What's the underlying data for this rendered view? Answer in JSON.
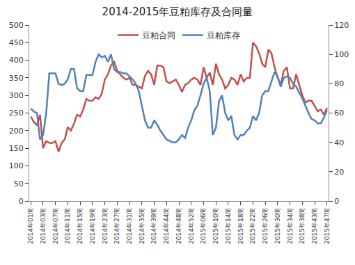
{
  "chart_data": {
    "type": "line",
    "title": "2014-2015年豆粕库存及合同量",
    "categories": [
      "2014年01周",
      null,
      null,
      null,
      "2014年03周",
      null,
      null,
      null,
      "2014年07周",
      null,
      null,
      null,
      "2014年11周",
      null,
      null,
      null,
      "2014年15周",
      null,
      null,
      null,
      "2014年19周",
      null,
      null,
      null,
      "2014年23周",
      null,
      null,
      null,
      "2014年27周",
      null,
      null,
      null,
      "2014年31周",
      null,
      null,
      null,
      "2014年35周",
      null,
      null,
      null,
      "2014年39周",
      null,
      null,
      null,
      "2014年44周",
      null,
      null,
      null,
      "2014年48周",
      null,
      null,
      null,
      "2014年52周",
      null,
      null,
      null,
      "2015年06周",
      null,
      null,
      null,
      "2015年10周",
      null,
      null,
      null,
      "2015年14周",
      null,
      null,
      null,
      "2015年18周",
      null,
      null,
      null,
      "2015年22周",
      null,
      null,
      null,
      "2015年26周",
      null,
      null,
      null,
      "2015年30周",
      null,
      null,
      null,
      "2015年34周",
      null,
      null,
      null,
      "2015年38周",
      null,
      null,
      null,
      "2015年43周",
      null,
      null,
      null,
      "2015年47周"
    ],
    "series": [
      {
        "name": "豆粕合同",
        "color": "#c0504d",
        "values": [
          240,
          225,
          215,
          245,
          150,
          170,
          165,
          165,
          170,
          140,
          165,
          175,
          210,
          200,
          220,
          245,
          240,
          260,
          290,
          285,
          285,
          295,
          290,
          305,
          345,
          360,
          385,
          395,
          370,
          360,
          350,
          345,
          350,
          330,
          330,
          325,
          320,
          355,
          370,
          360,
          330,
          385,
          385,
          380,
          340,
          335,
          340,
          345,
          330,
          310,
          330,
          335,
          345,
          350,
          345,
          330,
          380,
          350,
          365,
          330,
          390,
          360,
          345,
          320,
          330,
          350,
          345,
          330,
          360,
          340,
          350,
          350,
          450,
          440,
          420,
          390,
          380,
          430,
          420,
          380,
          350,
          330,
          370,
          380,
          320,
          320,
          360,
          330,
          300,
          280,
          285,
          285,
          270,
          255,
          260,
          245,
          265
        ]
      },
      {
        "name": "豆粕库存",
        "color": "#4f81bd",
        "axis": "y2",
        "values": [
          63,
          61,
          60,
          42,
          45,
          60,
          87,
          87,
          87,
          80,
          79,
          80,
          83,
          90,
          90,
          77,
          75,
          75,
          86,
          86,
          86,
          95,
          100,
          98,
          99,
          95,
          100,
          90,
          88,
          88,
          87,
          87,
          85,
          83,
          80,
          75,
          65,
          55,
          50,
          50,
          55,
          52,
          48,
          45,
          42,
          41,
          40,
          40,
          42,
          45,
          43,
          50,
          55,
          62,
          65,
          72,
          80,
          84,
          75,
          45,
          50,
          68,
          72,
          60,
          55,
          58,
          45,
          42,
          45,
          45,
          48,
          50,
          58,
          55,
          60,
          72,
          75,
          75,
          82,
          88,
          85,
          78,
          84,
          85,
          84,
          80,
          78,
          74,
          70,
          65,
          60,
          56,
          55,
          53,
          53,
          57,
          62
        ]
      }
    ],
    "ylim": [
      0,
      500
    ],
    "yticks": [
      0,
      50,
      100,
      150,
      200,
      250,
      300,
      350,
      400,
      450,
      500
    ],
    "y2lim": [
      0,
      120
    ],
    "y2ticks": [
      0,
      20,
      40,
      60,
      80,
      100,
      120
    ],
    "legend": "top",
    "grid": false
  }
}
